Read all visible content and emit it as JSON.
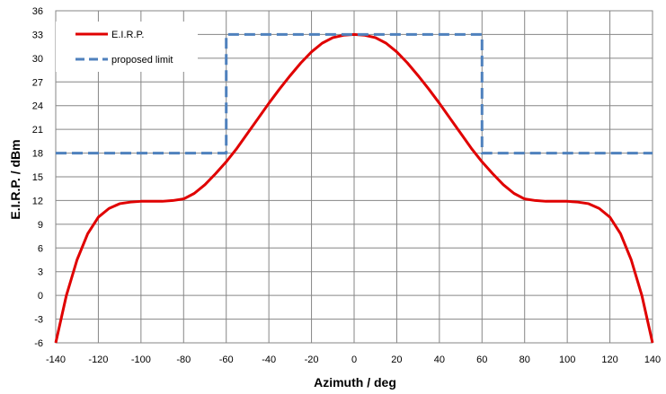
{
  "chart_data": {
    "type": "line",
    "title": "",
    "xlabel": "Azimuth / deg",
    "ylabel": "E.I.R.P. / dBm",
    "xlim": [
      -140,
      140
    ],
    "ylim": [
      -6,
      36
    ],
    "xticks": [
      -140,
      -120,
      -100,
      -80,
      -60,
      -40,
      -20,
      0,
      20,
      40,
      60,
      80,
      100,
      120,
      140
    ],
    "yticks": [
      -6,
      -3,
      0,
      3,
      6,
      9,
      12,
      15,
      18,
      21,
      24,
      27,
      30,
      33,
      36
    ],
    "grid": true,
    "legend_position": "top-left",
    "series": [
      {
        "name": "E.I.R.P.",
        "color": "#e00000",
        "style": "solid",
        "x": [
          -140,
          -135,
          -130,
          -125,
          -120,
          -115,
          -110,
          -105,
          -100,
          -95,
          -90,
          -85,
          -80,
          -75,
          -70,
          -65,
          -60,
          -55,
          -50,
          -45,
          -40,
          -35,
          -30,
          -25,
          -20,
          -15,
          -10,
          -5,
          0,
          5,
          10,
          15,
          20,
          25,
          30,
          35,
          40,
          45,
          50,
          55,
          60,
          65,
          70,
          75,
          80,
          85,
          90,
          95,
          100,
          105,
          110,
          115,
          120,
          125,
          130,
          135,
          140
        ],
        "y": [
          -6,
          0,
          4.5,
          7.8,
          9.9,
          11,
          11.6,
          11.8,
          11.9,
          11.9,
          11.9,
          12,
          12.2,
          12.9,
          14,
          15.4,
          16.9,
          18.6,
          20.5,
          22.4,
          24.3,
          26.1,
          27.8,
          29.4,
          30.8,
          31.9,
          32.6,
          32.9,
          33,
          32.9,
          32.6,
          31.9,
          30.8,
          29.4,
          27.8,
          26.1,
          24.3,
          22.4,
          20.5,
          18.6,
          16.9,
          15.4,
          14,
          12.9,
          12.2,
          12,
          11.9,
          11.9,
          11.9,
          11.8,
          11.6,
          11,
          9.9,
          7.8,
          4.5,
          0,
          -6
        ]
      },
      {
        "name": "proposed limit",
        "color": "#4f81bd",
        "style": "dashed",
        "x": [
          -140,
          -60,
          -60,
          60,
          60,
          140
        ],
        "y": [
          18,
          18,
          33,
          33,
          18,
          18
        ]
      }
    ]
  }
}
